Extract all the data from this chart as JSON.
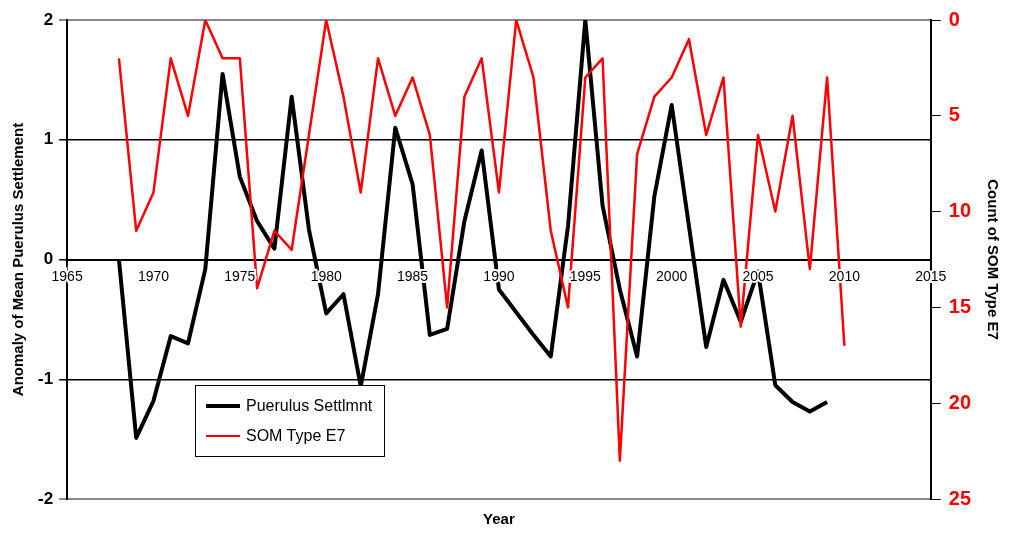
{
  "chart_data": {
    "type": "line",
    "xlabel": "Year",
    "ylabel": "Anomaly of Mean Puerulus Settlement",
    "y2label": "Count of SOM Type E7",
    "xlim": [
      1965,
      2015
    ],
    "xticks": [
      1965,
      1970,
      1975,
      1980,
      1985,
      1990,
      1995,
      2000,
      2005,
      2010,
      2015
    ],
    "ylim": [
      -2,
      2
    ],
    "yticks": [
      -2,
      -1,
      0,
      1,
      2
    ],
    "y2lim": [
      25,
      0
    ],
    "y2ticks": [
      0,
      5,
      10,
      15,
      20,
      25
    ],
    "grid": "y",
    "legend": "bottom left",
    "marker": "none",
    "line_style": "solid",
    "series": [
      {
        "name": "Puerulus Settlmnt",
        "color": "#000000",
        "x": [
          1968,
          1969,
          1970,
          1971,
          1972,
          1973,
          1974,
          1975,
          1976,
          1977,
          1978,
          1979,
          1980,
          1981,
          1982,
          1983,
          1984,
          1985,
          1986,
          1987,
          1988,
          1989,
          1990,
          1991,
          1992,
          1993,
          1994,
          1995,
          1996,
          1997,
          1998,
          1999,
          2000,
          2001,
          2002,
          2003,
          2004,
          2005,
          2006,
          2007,
          2008,
          2009
        ],
        "values": [
          0.0,
          -1.49,
          -1.18,
          -0.64,
          -0.7,
          -0.08,
          1.55,
          0.69,
          0.32,
          0.09,
          1.36,
          0.25,
          -0.45,
          -0.29,
          -1.06,
          -0.29,
          1.1,
          0.63,
          -0.63,
          -0.58,
          0.32,
          0.91,
          -0.25,
          -0.44,
          -0.63,
          -0.81,
          0.28,
          2.0,
          0.45,
          -0.25,
          -0.81,
          0.53,
          1.29,
          0.28,
          -0.73,
          -0.17,
          -0.52,
          -0.1,
          -1.05,
          -1.19,
          -1.27,
          -1.19
        ]
      },
      {
        "name": "SOM Type E7",
        "color": "#ff0000",
        "axis": "y2",
        "x": [
          1968,
          1969,
          1970,
          1971,
          1972,
          1973,
          1974,
          1975,
          1976,
          1977,
          1978,
          1979,
          1980,
          1981,
          1982,
          1983,
          1984,
          1985,
          1986,
          1987,
          1988,
          1989,
          1990,
          1991,
          1992,
          1993,
          1994,
          1995,
          1996,
          1997,
          1998,
          1999,
          2000,
          2001,
          2002,
          2003,
          2004,
          2005,
          2006,
          2007,
          2008,
          2009,
          2010
        ],
        "values": [
          2,
          11,
          9,
          2,
          5,
          0,
          2,
          2,
          14,
          11,
          12,
          6,
          0,
          4,
          9,
          2,
          5,
          3,
          6,
          15,
          4,
          2,
          9,
          0,
          3,
          11,
          15,
          3,
          2,
          23,
          7,
          4,
          3,
          1,
          6,
          3,
          16,
          6,
          10,
          5,
          13,
          3,
          17
        ]
      }
    ]
  }
}
